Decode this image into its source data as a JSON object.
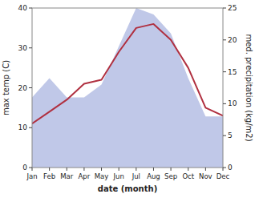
{
  "chart_data": {
    "type": "line",
    "categories": [
      "Jan",
      "Feb",
      "Mar",
      "Apr",
      "May",
      "Jun",
      "Jul",
      "Aug",
      "Sep",
      "Oct",
      "Nov",
      "Dec"
    ],
    "series": [
      {
        "type": "area",
        "axis": "y2",
        "color": "#c0c8e8",
        "values": [
          11,
          14,
          11,
          11,
          13,
          19,
          25,
          24,
          21,
          14,
          8,
          8
        ]
      },
      {
        "type": "line",
        "color": "#b03040",
        "values": [
          11,
          14,
          17,
          21,
          22,
          29,
          35,
          36,
          32,
          25,
          15,
          13
        ]
      }
    ],
    "xlabel": "date (month)",
    "ylabel": "max temp (C)",
    "y2label": "med. precipitation (kg/m2)",
    "ylim": [
      0,
      40
    ],
    "yticks": [
      0,
      10,
      20,
      30,
      40
    ],
    "y2lim": [
      0,
      25
    ],
    "y2ticks": [
      0,
      5,
      10,
      15,
      20,
      25
    ],
    "grid": false
  }
}
